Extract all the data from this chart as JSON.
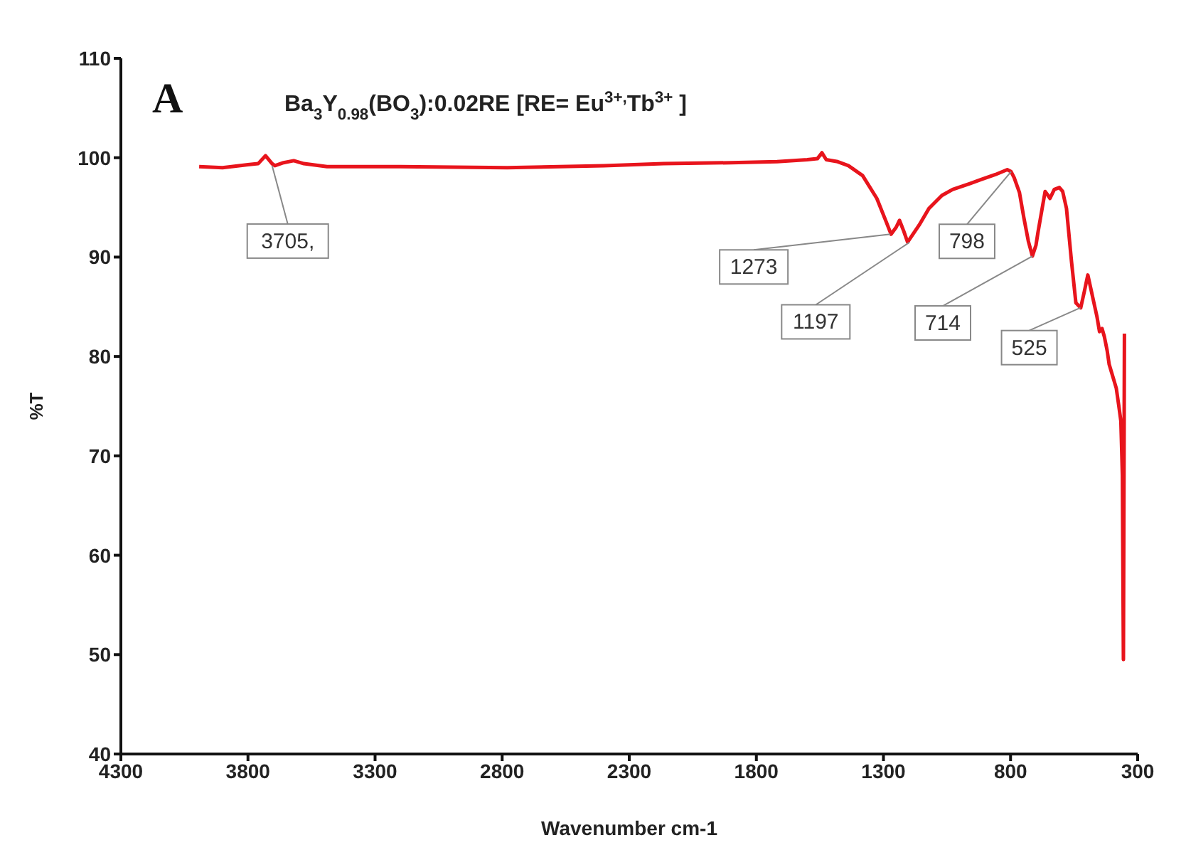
{
  "chart_data": {
    "type": "line",
    "title": "Ba$_{3}$Y$_{0.98}$(BO$_{3}$):0.02RE [RE= Eu$^{3+,}$Tb$^{3+}$ ]",
    "xlabel": "Wavenumber  cm-1",
    "ylabel": "%T",
    "annotations": [
      "A",
      {
        "text": "3705,",
        "x": 3705,
        "y": 99.2
      },
      {
        "text": "1273",
        "x": 1273,
        "y": 92.3
      },
      {
        "text": "1197",
        "x": 1197,
        "y": 91.5
      },
      {
        "text": "798",
        "x": 798,
        "y": 98.6
      },
      {
        "text": "714",
        "x": 714,
        "y": 90.1
      },
      {
        "text": "525",
        "x": 525,
        "y": 84.9
      }
    ],
    "series": [
      {
        "color": "#e8141c",
        "x": [
          3992,
          3900,
          3800,
          3760,
          3731,
          3705,
          3694,
          3660,
          3620,
          3580,
          3489,
          3200,
          2780,
          2400,
          2165,
          1900,
          1718,
          1600,
          1560,
          1542,
          1525,
          1480,
          1438,
          1382,
          1326,
          1290,
          1270,
          1250,
          1237,
          1220,
          1205,
          1160,
          1121,
          1070,
          1028,
          960,
          916,
          860,
          813,
          798,
          786,
          765,
          748,
          730,
          714,
          700,
          692,
          675,
          664,
          655,
          645,
          628,
          608,
          595,
          580,
          560,
          543,
          532,
          524,
          510,
          496,
          484,
          472,
          460,
          450,
          440,
          431,
          420,
          412,
          398,
          384,
          374,
          366,
          360,
          356,
          352
        ],
        "values": [
          99.1,
          99.0,
          99.3,
          99.4,
          100.2,
          99.4,
          99.2,
          99.5,
          99.7,
          99.4,
          99.1,
          99.1,
          99.0,
          99.2,
          99.4,
          99.5,
          99.6,
          99.8,
          99.9,
          100.5,
          99.8,
          99.6,
          99.2,
          98.2,
          95.9,
          93.6,
          92.3,
          93.0,
          93.7,
          92.6,
          91.5,
          93.2,
          94.9,
          96.2,
          96.8,
          97.4,
          97.8,
          98.3,
          98.8,
          98.6,
          98.0,
          96.5,
          94.0,
          91.6,
          90.1,
          91.2,
          92.5,
          95.0,
          96.6,
          96.3,
          95.9,
          96.8,
          97.0,
          96.6,
          94.9,
          89.5,
          85.4,
          85.1,
          84.9,
          86.5,
          88.2,
          86.8,
          85.4,
          84.0,
          82.5,
          82.8,
          82.0,
          80.6,
          79.2,
          78.0,
          76.8,
          75.0,
          73.5,
          68.0,
          49.5,
          82.3
        ]
      }
    ],
    "xlim": [
      4300,
      300
    ],
    "xticks": [
      4300,
      3800,
      3300,
      2800,
      2300,
      1800,
      1300,
      800,
      300
    ],
    "ylim": [
      40,
      110
    ],
    "yticks": [
      40,
      50,
      60,
      70,
      80,
      90,
      100,
      110
    ],
    "grid": false,
    "legend": false,
    "marker": "none",
    "line_style": "solid"
  }
}
